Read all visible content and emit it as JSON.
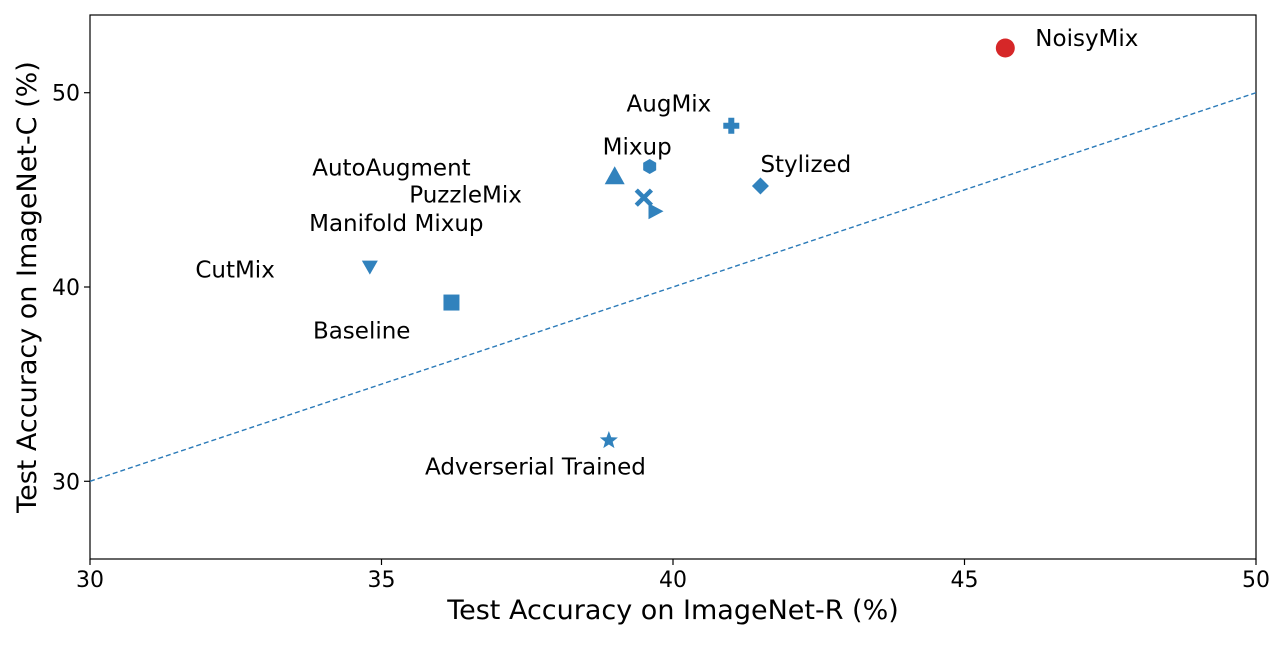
{
  "chart_data": {
    "type": "scatter",
    "title": "",
    "xlabel": "Test Accuracy on ImageNet-R (%)",
    "ylabel": "Test Accuracy on ImageNet-C (%)",
    "xlim": [
      30,
      50
    ],
    "ylim": [
      26,
      54
    ],
    "xticks": [
      30,
      35,
      40,
      45,
      50
    ],
    "yticks": [
      30,
      40,
      50
    ],
    "grid": false,
    "legend": "none",
    "reference_line": {
      "from": [
        30,
        30
      ],
      "to": [
        50,
        50
      ],
      "style": "dashed",
      "color": "#2a7ab8"
    },
    "points": [
      {
        "label": "NoisyMix",
        "x": 45.7,
        "y": 52.3,
        "marker": "circle",
        "color": "#d62728"
      },
      {
        "label": "AugMix",
        "x": 41.0,
        "y": 48.3,
        "marker": "plus",
        "color": "#3182bd"
      },
      {
        "label": "Mixup",
        "x": 39.6,
        "y": 46.2,
        "marker": "hexagon",
        "color": "#3182bd"
      },
      {
        "label": "Stylized",
        "x": 41.5,
        "y": 45.2,
        "marker": "diamond",
        "color": "#3182bd"
      },
      {
        "label": "AutoAugment",
        "x": 39.0,
        "y": 45.7,
        "marker": "triangle-up",
        "color": "#3182bd"
      },
      {
        "label": "PuzzleMix",
        "x": 39.5,
        "y": 44.6,
        "marker": "x",
        "color": "#3182bd"
      },
      {
        "label": "Manifold Mixup",
        "x": 39.7,
        "y": 43.9,
        "marker": "triangle-right",
        "color": "#3182bd"
      },
      {
        "label": "CutMix",
        "x": 34.8,
        "y": 41.0,
        "marker": "triangle-down",
        "color": "#3182bd"
      },
      {
        "label": "Baseline",
        "x": 36.2,
        "y": 39.2,
        "marker": "square",
        "color": "#3182bd"
      },
      {
        "label": "Adverserial Trained",
        "x": 38.9,
        "y": 32.1,
        "marker": "star",
        "color": "#3182bd"
      }
    ]
  }
}
